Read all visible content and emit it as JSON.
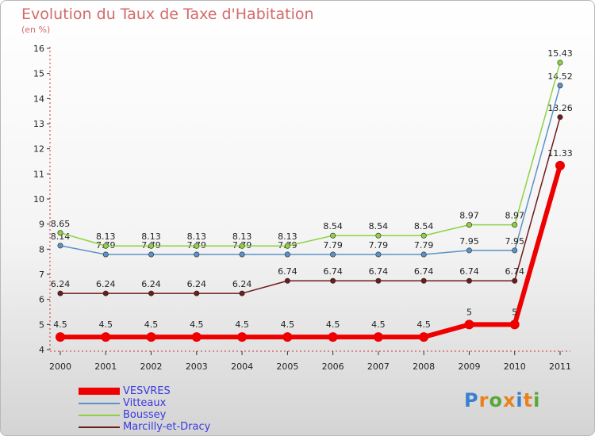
{
  "header": {
    "title": "Evolution du Taux de Taxe d'Habitation",
    "subtitle": "(en %)"
  },
  "logo": {
    "text": "Proxiti"
  },
  "chart_data": {
    "type": "line",
    "title": "Evolution du Taux de Taxe d'Habitation",
    "ylabel": "(en %)",
    "xlabel": "",
    "ylim": [
      4,
      16
    ],
    "yticks": [
      "4",
      "5",
      "6",
      "7",
      "8",
      "9",
      "10",
      "11",
      "12",
      "13",
      "14",
      "15",
      "16"
    ],
    "x": [
      "2000",
      "2001",
      "2002",
      "2003",
      "2004",
      "2005",
      "2006",
      "2007",
      "2008",
      "2009",
      "2010",
      "2011"
    ],
    "grid": false,
    "legend_position": "bottom-left",
    "series": [
      {
        "name": "Marcilly-et-Dracy",
        "color": "#6e1b1b",
        "values": [
          6.24,
          6.24,
          6.24,
          6.24,
          6.24,
          6.74,
          6.74,
          6.74,
          6.74,
          6.74,
          6.74,
          13.26
        ],
        "labels": [
          "6.24",
          "6.24",
          "6.24",
          "6.24",
          "6.24",
          "6.74",
          "6.74",
          "6.74",
          "6.74",
          "6.74",
          "6.74",
          "13.26"
        ]
      },
      {
        "name": "Vitteaux",
        "color": "#5b93c7",
        "values": [
          8.14,
          7.79,
          7.79,
          7.79,
          7.79,
          7.79,
          7.79,
          7.79,
          7.79,
          7.95,
          7.95,
          14.52
        ],
        "labels": [
          "8.14",
          "7.79",
          "7.79",
          "7.79",
          "7.79",
          "7.79",
          "7.79",
          "7.79",
          "7.79",
          "7.95",
          "7.95",
          "14.52"
        ]
      },
      {
        "name": "Boussey",
        "color": "#8fd142",
        "values": [
          8.65,
          8.13,
          8.13,
          8.13,
          8.13,
          8.13,
          8.54,
          8.54,
          8.54,
          8.97,
          8.97,
          15.43
        ],
        "labels": [
          "8.65",
          "8.13",
          "8.13",
          "8.13",
          "8.13",
          "8.13",
          "8.54",
          "8.54",
          "8.54",
          "8.97",
          "8.97",
          "15.43"
        ]
      },
      {
        "name": "VESVRES",
        "color": "#ee0000",
        "values": [
          4.5,
          4.5,
          4.5,
          4.5,
          4.5,
          4.5,
          4.5,
          4.5,
          4.5,
          5,
          5,
          11.33
        ],
        "labels": [
          "4.5",
          "4.5",
          "4.5",
          "4.5",
          "4.5",
          "4.5",
          "4.5",
          "4.5",
          "4.5",
          "5",
          "5",
          "11.33"
        ]
      }
    ],
    "legend": [
      "VESVRES",
      "Vitteaux",
      "Boussey",
      "Marcilly-et-Dracy"
    ]
  }
}
